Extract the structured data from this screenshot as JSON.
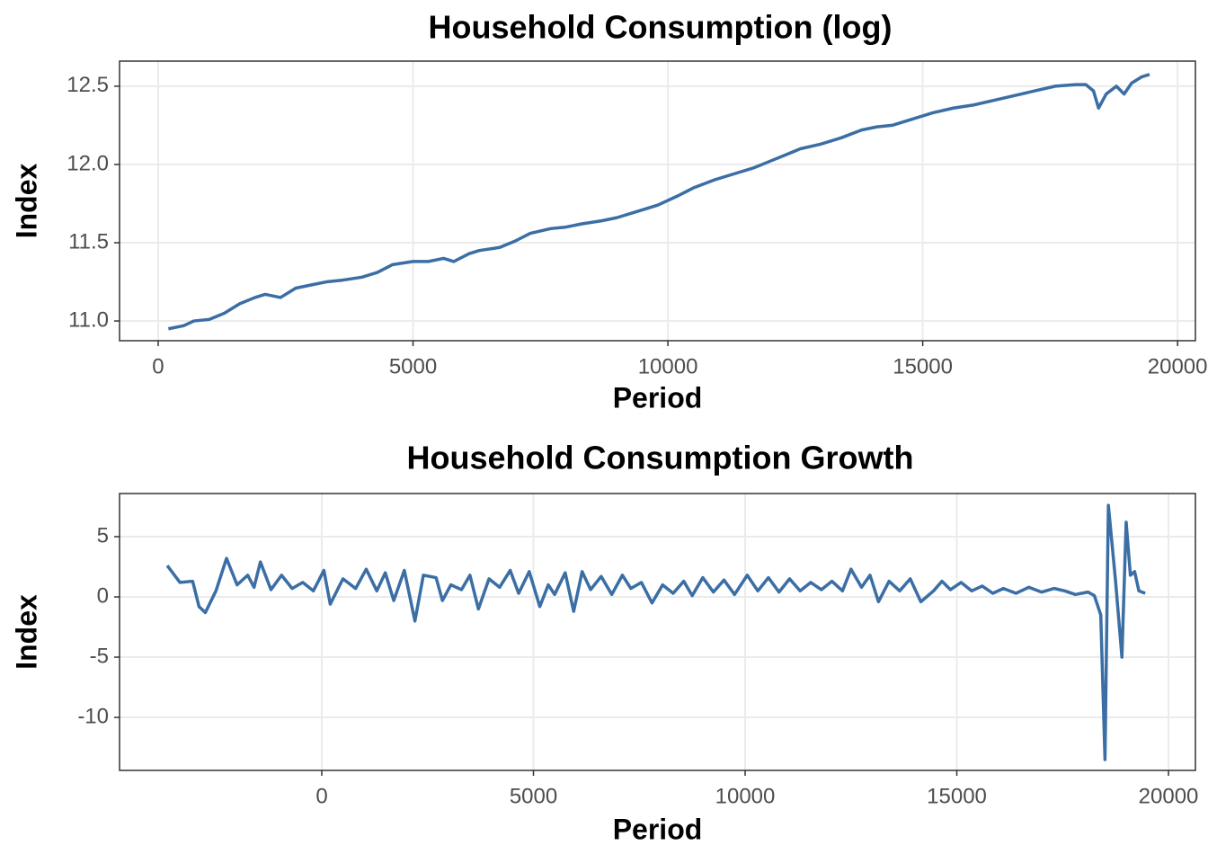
{
  "chart_data": [
    {
      "type": "line",
      "title": "Household Consumption (log)",
      "x_label": "Period",
      "y_label": "Index",
      "color": "#3a6ea5",
      "grid": true,
      "xlim": [
        -758,
        20350
      ],
      "ylim": [
        10.874,
        12.66
      ],
      "xticks": [
        0,
        5000,
        10000,
        15000,
        20000
      ],
      "yticks": [
        {
          "value": 11,
          "label": "11.0"
        },
        11.5,
        {
          "value": 12,
          "label": "12.0"
        },
        12.5
      ],
      "x": [
        200,
        500,
        700,
        1000,
        1300,
        1600,
        1900,
        2100,
        2400,
        2700,
        3000,
        3300,
        3600,
        4000,
        4300,
        4600,
        5000,
        5300,
        5600,
        5800,
        6100,
        6300,
        6700,
        7000,
        7300,
        7700,
        8000,
        8300,
        8700,
        9000,
        9400,
        9800,
        10200,
        10500,
        10900,
        11300,
        11700,
        12000,
        12300,
        12600,
        13000,
        13400,
        13800,
        14100,
        14400,
        14800,
        15200,
        15600,
        16000,
        16400,
        16800,
        17200,
        17600,
        18000,
        18200,
        18350,
        18450,
        18600,
        18800,
        18950,
        19100,
        19300,
        19450
      ],
      "values": [
        10.95,
        10.97,
        11.0,
        11.01,
        11.05,
        11.11,
        11.15,
        11.17,
        11.15,
        11.21,
        11.23,
        11.25,
        11.26,
        11.28,
        11.31,
        11.36,
        11.38,
        11.38,
        11.4,
        11.38,
        11.43,
        11.45,
        11.47,
        11.51,
        11.56,
        11.59,
        11.6,
        11.62,
        11.64,
        11.66,
        11.7,
        11.74,
        11.8,
        11.85,
        11.9,
        11.94,
        11.98,
        12.02,
        12.06,
        12.1,
        12.13,
        12.17,
        12.22,
        12.24,
        12.25,
        12.29,
        12.33,
        12.36,
        12.38,
        12.41,
        12.44,
        12.47,
        12.5,
        12.51,
        12.51,
        12.47,
        12.36,
        12.45,
        12.5,
        12.45,
        12.52,
        12.56,
        12.575
      ]
    },
    {
      "type": "line",
      "title": "Household Consumption Growth",
      "x_label": "Period",
      "y_label": "Index",
      "color": "#3a6ea5",
      "grid": true,
      "xlim": [
        -4777,
        20636
      ],
      "ylim": [
        -14.4,
        8.58
      ],
      "xticks": [
        0,
        5000,
        10000,
        15000,
        20000
      ],
      "yticks": [
        -10,
        -5,
        0,
        5
      ],
      "x": [
        -3650,
        -3350,
        -3050,
        -2900,
        -2750,
        -2500,
        -2250,
        -2000,
        -1750,
        -1600,
        -1450,
        -1200,
        -950,
        -700,
        -450,
        -200,
        50,
        200,
        500,
        800,
        1050,
        1300,
        1500,
        1700,
        1950,
        2200,
        2400,
        2700,
        2850,
        3050,
        3300,
        3500,
        3700,
        3950,
        4200,
        4450,
        4650,
        4900,
        5150,
        5350,
        5500,
        5750,
        5950,
        6150,
        6350,
        6600,
        6850,
        7100,
        7300,
        7550,
        7800,
        8050,
        8300,
        8550,
        8750,
        9000,
        9250,
        9500,
        9750,
        10050,
        10300,
        10550,
        10800,
        11050,
        11300,
        11550,
        11800,
        12050,
        12300,
        12500,
        12750,
        12950,
        13150,
        13400,
        13650,
        13900,
        14150,
        14450,
        14650,
        14850,
        15100,
        15350,
        15600,
        15850,
        16100,
        16400,
        16700,
        17000,
        17300,
        17550,
        17800,
        18100,
        18250,
        18400,
        18500,
        18580,
        18750,
        18900,
        19000,
        19100,
        19200,
        19300,
        19450
      ],
      "values": [
        2.6,
        1.2,
        1.3,
        -0.8,
        -1.3,
        0.5,
        3.2,
        1.0,
        1.8,
        0.8,
        2.9,
        0.6,
        1.8,
        0.7,
        1.2,
        0.5,
        2.2,
        -0.6,
        1.5,
        0.7,
        2.3,
        0.5,
        2.0,
        -0.3,
        2.2,
        -2.0,
        1.8,
        1.6,
        -0.3,
        1.0,
        0.6,
        1.8,
        -1.0,
        1.5,
        0.8,
        2.2,
        0.3,
        2.1,
        -0.8,
        1.0,
        0.2,
        2.0,
        -1.2,
        2.1,
        0.6,
        1.7,
        0.2,
        1.8,
        0.7,
        1.2,
        -0.5,
        1.0,
        0.3,
        1.3,
        0.1,
        1.6,
        0.4,
        1.4,
        0.2,
        1.8,
        0.5,
        1.6,
        0.4,
        1.5,
        0.5,
        1.2,
        0.6,
        1.3,
        0.5,
        2.3,
        0.8,
        1.8,
        -0.4,
        1.3,
        0.5,
        1.5,
        -0.4,
        0.5,
        1.3,
        0.6,
        1.2,
        0.5,
        0.9,
        0.3,
        0.7,
        0.3,
        0.8,
        0.4,
        0.7,
        0.5,
        0.2,
        0.4,
        0.1,
        -1.5,
        -13.5,
        7.6,
        1.3,
        -5.0,
        6.2,
        1.8,
        2.1,
        0.5,
        0.3
      ]
    }
  ]
}
